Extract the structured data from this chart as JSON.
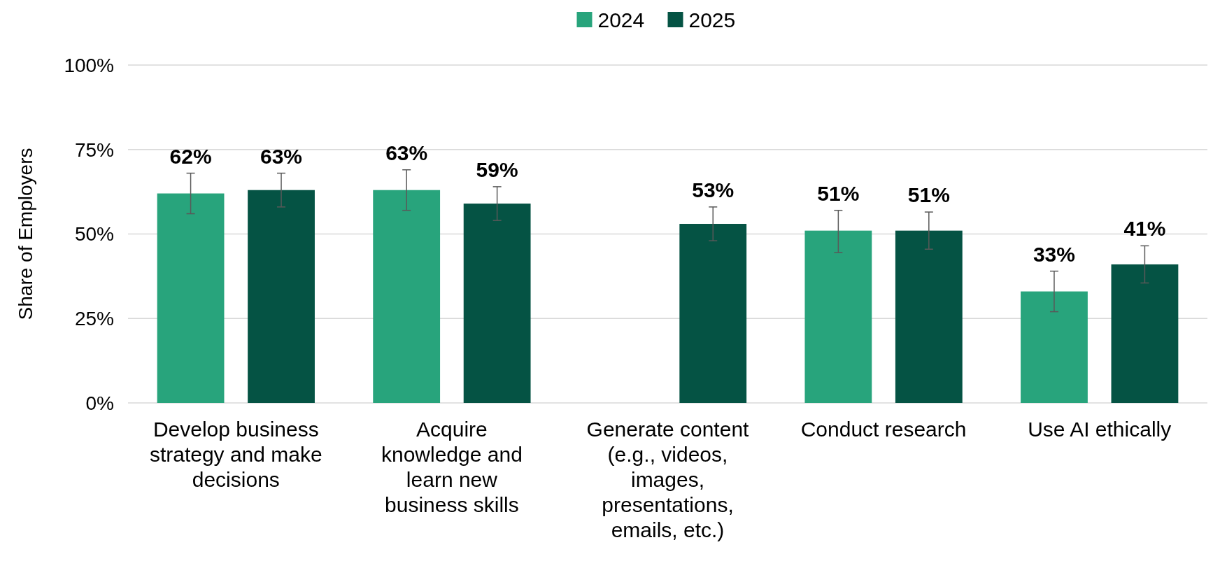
{
  "chart_data": {
    "type": "bar",
    "ylabel": "Share of Employers",
    "categories": [
      "Develop business strategy and make decisions",
      "Acquire knowledge and learn new business skills",
      "Generate content (e.g., videos, images, presentations, emails, etc.)",
      "Conduct research",
      "Use AI ethically"
    ],
    "series": [
      {
        "name": "2024",
        "color": "#28a47c",
        "values": [
          62,
          63,
          null,
          51,
          33
        ],
        "value_labels": [
          "62%",
          "63%",
          null,
          "51%",
          "33%"
        ],
        "errors": [
          [
            56,
            68
          ],
          [
            57,
            69
          ],
          null,
          [
            44.5,
            57
          ],
          [
            27,
            39
          ]
        ]
      },
      {
        "name": "2025",
        "color": "#055344",
        "values": [
          63,
          59,
          53,
          51,
          41
        ],
        "value_labels": [
          "63%",
          "59%",
          "53%",
          "51%",
          "41%"
        ],
        "errors": [
          [
            58,
            68
          ],
          [
            54,
            64
          ],
          [
            48,
            58
          ],
          [
            45.5,
            56.5
          ],
          [
            35.5,
            46.5
          ]
        ]
      }
    ],
    "ylim": [
      0,
      100
    ],
    "yticks": [
      {
        "value": 0,
        "label": "0%"
      },
      {
        "value": 25,
        "label": "25%"
      },
      {
        "value": 50,
        "label": "50%"
      },
      {
        "value": 75,
        "label": "75%"
      },
      {
        "value": 100,
        "label": "100%"
      }
    ],
    "grid": "y",
    "legend": "top"
  }
}
